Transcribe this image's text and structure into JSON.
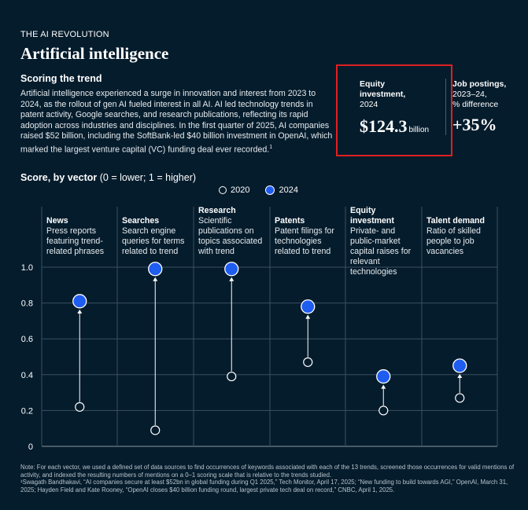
{
  "header": {
    "kicker": "THE AI REVOLUTION",
    "title": "Artificial intelligence",
    "subhead": "Scoring the trend",
    "body": "Artificial intelligence experienced a surge in innovation and interest from 2023 to 2024, as the rollout of gen AI fueled interest in all AI. AI led technology trends in patent activity, Google searches, and research publications, reflecting its rapid adoption across industries and disciplines. In the first quarter of 2025, AI companies raised $52 billion, including the SoftBank-led $40 billion investment in OpenAI, which marked the largest venture capital (VC) funding deal ever recorded.",
    "body_sup": "1"
  },
  "stats": {
    "equity": {
      "label_line1": "Equity",
      "label_line2": "investment,",
      "label_line3": "2024",
      "value": "$124.3",
      "unit": "billion"
    },
    "jobs": {
      "label_line1": "Job postings,",
      "label_line2": "2023–24,",
      "label_line3": "% difference",
      "value": "+35%"
    }
  },
  "score_heading": {
    "bold": "Score, by vector",
    "rest": " (0 = lower; 1 = higher)"
  },
  "legend": {
    "y2020": "2020",
    "y2024": "2024"
  },
  "colors": {
    "background": "#051c2c",
    "accent_2024": "#1f5cf0",
    "highlight_box": "#e02020"
  },
  "columns": [
    {
      "name": "News",
      "desc": "Press reports featuring trend-related phrases"
    },
    {
      "name": "Searches",
      "desc": "Search engine queries for terms related to trend"
    },
    {
      "name": "Research",
      "desc": "Scientific publications on topics associated with trend"
    },
    {
      "name": "Patents",
      "desc": "Patent filings for technologies related to trend"
    },
    {
      "name": "Equity investment",
      "desc": "Private- and public-market capital raises for relevant technologies"
    },
    {
      "name": "Talent demand",
      "desc": "Ratio of skilled people to job vacancies"
    }
  ],
  "chart_data": {
    "type": "scatter",
    "categories": [
      "News",
      "Searches",
      "Research",
      "Patents",
      "Equity investment",
      "Talent demand"
    ],
    "series": [
      {
        "name": "2020",
        "values": [
          0.22,
          0.09,
          0.39,
          0.47,
          0.2,
          0.27
        ]
      },
      {
        "name": "2024",
        "values": [
          0.81,
          0.99,
          0.99,
          0.78,
          0.39,
          0.45
        ]
      }
    ],
    "ylim": [
      0,
      1
    ],
    "yticks": [
      "0",
      "0.2",
      "0.4",
      "0.6",
      "0.8",
      "1.0"
    ],
    "grid": true
  },
  "footnote": {
    "line1": "Note: For each vector, we used a defined set of data sources to find occurrences of keywords associated with each of the 13 trends, screened those occurrences for valid mentions of activity, and indexed the resulting numbers of mentions on a 0–1 scoring scale that is relative to the trends studied.",
    "line2": "¹Swagath Bandhakavi, “AI companies secure at least $52bn in global funding during Q1 2025,” Tech Monitor, April 17, 2025; “New funding to build towards AGI,” OpenAI, March 31, 2025; Hayden Field and Kate Rooney, “OpenAI closes $40 billion funding round, largest private tech deal on record,” CNBC, April 1, 2025."
  }
}
